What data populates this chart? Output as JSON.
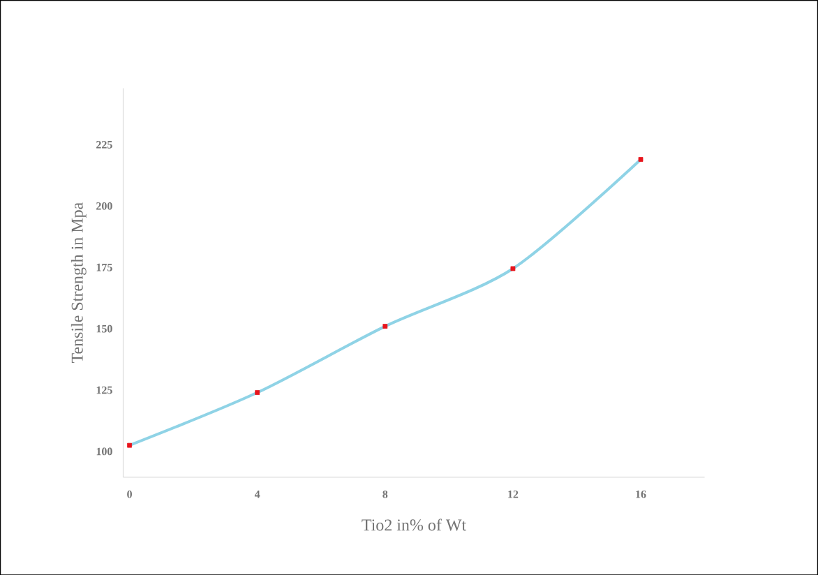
{
  "chart_data": {
    "type": "line",
    "xlabel": "Tio2 in% of Wt",
    "ylabel": "Tensile Strength in Mpa",
    "x": [
      0,
      4,
      8,
      12,
      16
    ],
    "series": [
      {
        "color": "#8fd3e6",
        "colors": [
          "#e8141c",
          "#e8141c",
          "#e8141c",
          "#e8141c",
          "#e8141c"
        ],
        "values": [
          102.5,
          124,
          151,
          174.5,
          219
        ]
      }
    ],
    "xlim": [
      -0.2,
      18
    ],
    "ylim": [
      89.5,
      248
    ],
    "xticks": [
      0,
      4,
      8,
      12,
      16
    ],
    "yticks": [
      100,
      125,
      150,
      175,
      200,
      225
    ],
    "marker": "square"
  }
}
